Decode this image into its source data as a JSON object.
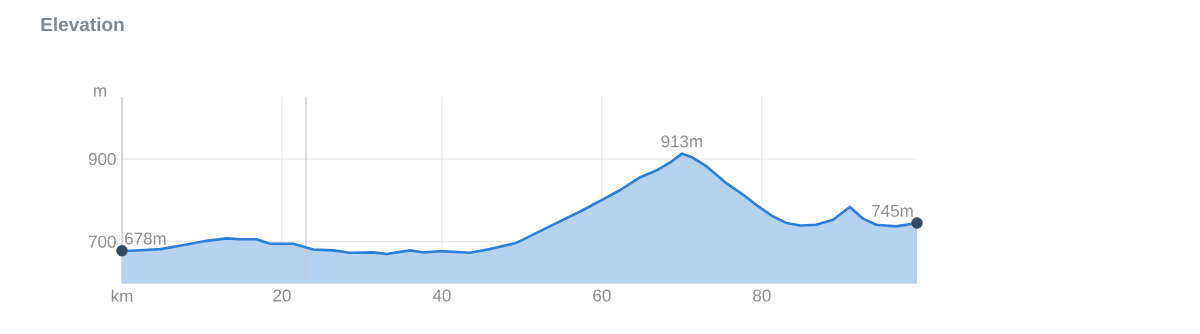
{
  "chart_data": {
    "type": "area",
    "title": "Elevation",
    "xlabel": "km",
    "ylabel": "m",
    "xlim": [
      0,
      99.4
    ],
    "ylim": [
      600,
      1050
    ],
    "xticks": [
      20,
      40,
      60,
      80
    ],
    "yticks": [
      700,
      900
    ],
    "grid": true,
    "series": [
      {
        "color": "#2d7fd8",
        "x": [
          0,
          1.2,
          4.8,
          8.1,
          10.6,
          13.1,
          14.8,
          16.8,
          18.5,
          21.4,
          23.9,
          26.4,
          28.5,
          31.4,
          33.1,
          36,
          37.7,
          39.8,
          43.5,
          46,
          49.3,
          51.4,
          54.3,
          57.3,
          60.2,
          62.3,
          64.8,
          66.8,
          68.5,
          70,
          71.2,
          73.1,
          75.6,
          77.7,
          79.3,
          81.4,
          83.1,
          84.8,
          86.8,
          88.9,
          91,
          92.7,
          94.3,
          96.8,
          99.4
        ],
        "values": [
          678,
          678,
          682,
          693,
          702,
          708,
          706,
          706,
          695,
          695,
          681,
          679,
          673,
          674,
          670,
          679,
          674,
          677,
          673,
          682,
          697,
          717,
          745,
          773,
          803,
          825,
          856,
          872,
          891,
          913,
          905,
          882,
          841,
          813,
          789,
          761,
          745,
          739,
          741,
          753,
          784,
          755,
          741,
          737,
          745
        ]
      },
      {
        "type": "scatter",
        "marker": "circle",
        "color": "#34495e",
        "x": [
          0,
          99.4
        ],
        "values": [
          678,
          745
        ]
      }
    ],
    "annotations": [
      {
        "text": "678m",
        "x": 0,
        "y": 678
      },
      {
        "text": "913m",
        "x": 70,
        "y": 913
      },
      {
        "text": "745m",
        "x": 99.4,
        "y": 745
      }
    ],
    "ref_lines": [
      {
        "axis": "x",
        "value": 23,
        "color": "#c3c9cf"
      }
    ]
  }
}
